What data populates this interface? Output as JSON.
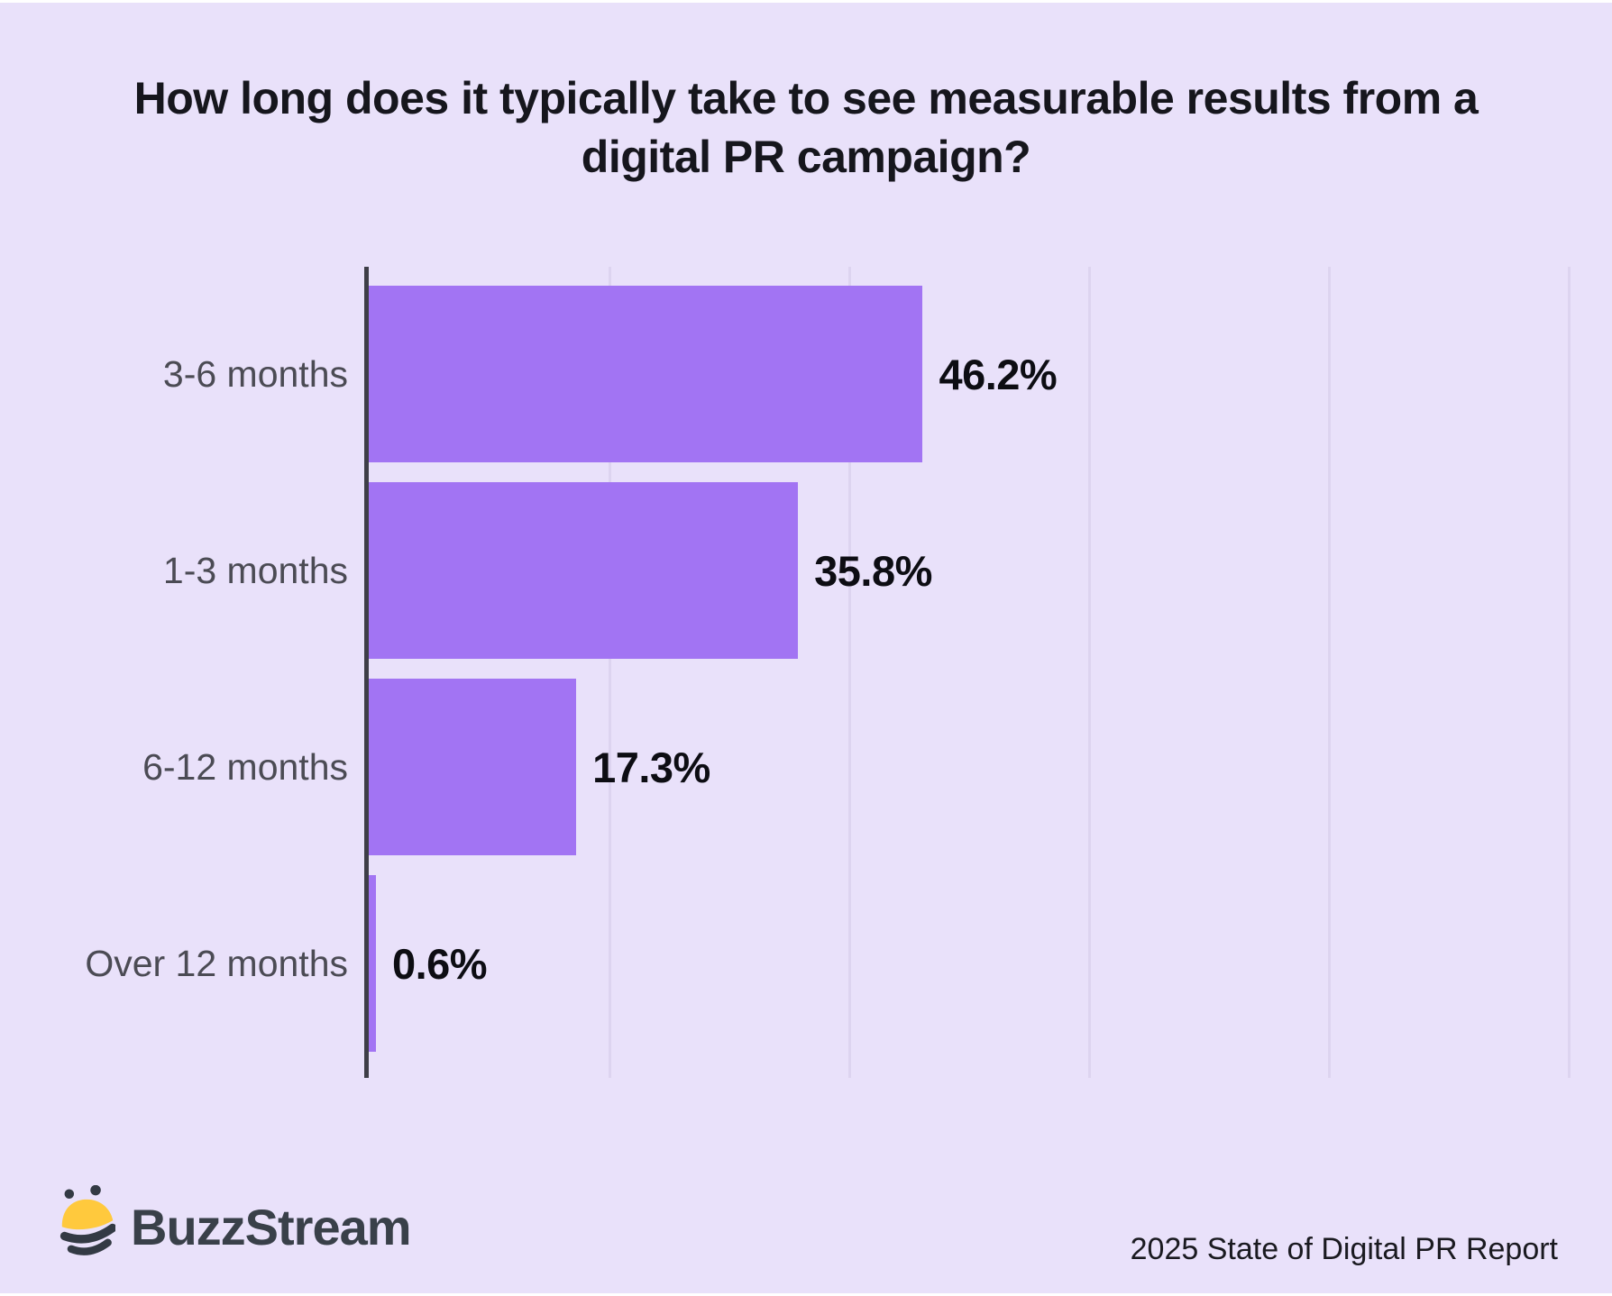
{
  "title": "How long does it typically take to see measurable results from a\ndigital PR campaign?",
  "chart_data": {
    "type": "bar",
    "orientation": "horizontal",
    "title": "How long does it typically take to see measurable results from a digital PR campaign?",
    "categories": [
      "3-6 months",
      "1-3 months",
      "6-12 months",
      "Over 12 months"
    ],
    "values": [
      46.2,
      35.8,
      17.3,
      0.6
    ],
    "value_labels": [
      "46.2%",
      "35.8%",
      "17.3%",
      "0.6%"
    ],
    "xlabel": "",
    "ylabel": "",
    "xlim": [
      0,
      100
    ],
    "x_gridlines": [
      20,
      40,
      60,
      80,
      100
    ],
    "grid": "on",
    "legend": "none"
  },
  "footer": {
    "brand": "BuzzStream",
    "credit": "2025 State of Digital PR Report"
  },
  "colors": {
    "background": "#E9E1FA",
    "bar": "#A274F3",
    "axis_line": "#3E3E47",
    "gridline": "#DDD4F0",
    "category_label": "#4B4B54",
    "value_label": "#0D0D13",
    "title_text": "#16161D",
    "brand_text": "#394049",
    "bee_yellow": "#FFC93D",
    "bee_dark": "#333A44",
    "credit_text": "#1A1A20"
  }
}
